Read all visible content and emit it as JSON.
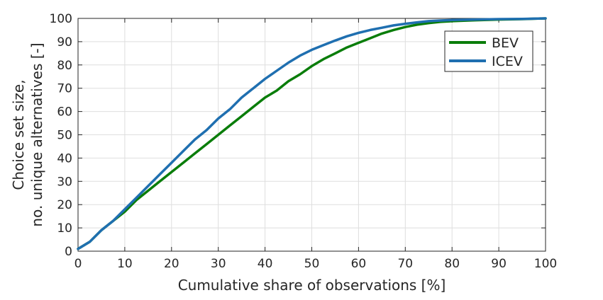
{
  "chart_data": {
    "type": "line",
    "title": "",
    "xlabel": "Cumulative share of observations [%]",
    "ylabel_lines": [
      "Choice set size,",
      "no. unique alternatives [-]"
    ],
    "xlim": [
      0,
      100
    ],
    "ylim": [
      0,
      100
    ],
    "xticks": [
      0,
      10,
      20,
      30,
      40,
      50,
      60,
      70,
      80,
      90,
      100
    ],
    "yticks": [
      0,
      10,
      20,
      30,
      40,
      50,
      60,
      70,
      80,
      90,
      100
    ],
    "grid": true,
    "legend_position": "top-right",
    "series": [
      {
        "name": "BEV",
        "color": "#0a7d0a",
        "points": [
          [
            0,
            1
          ],
          [
            2.5,
            4
          ],
          [
            5,
            9
          ],
          [
            7.5,
            13
          ],
          [
            10,
            17
          ],
          [
            12.5,
            22
          ],
          [
            15,
            26
          ],
          [
            17.5,
            30
          ],
          [
            20,
            34
          ],
          [
            22.5,
            38
          ],
          [
            25,
            42
          ],
          [
            27.5,
            46
          ],
          [
            30,
            50
          ],
          [
            32.5,
            54
          ],
          [
            35,
            58
          ],
          [
            37.5,
            62
          ],
          [
            40,
            66
          ],
          [
            42.5,
            69
          ],
          [
            45,
            73
          ],
          [
            47.5,
            76
          ],
          [
            50,
            79.5
          ],
          [
            52.5,
            82.5
          ],
          [
            55,
            85
          ],
          [
            57.5,
            87.5
          ],
          [
            60,
            89.5
          ],
          [
            62.5,
            91.5
          ],
          [
            65,
            93.5
          ],
          [
            67.5,
            95
          ],
          [
            70,
            96.3
          ],
          [
            72.5,
            97.3
          ],
          [
            75,
            98
          ],
          [
            77.5,
            98.5
          ],
          [
            80,
            98.8
          ],
          [
            85,
            99.2
          ],
          [
            90,
            99.5
          ],
          [
            95,
            99.7
          ],
          [
            100,
            100
          ]
        ]
      },
      {
        "name": "ICEV",
        "color": "#1f6fb0",
        "points": [
          [
            0,
            1
          ],
          [
            2.5,
            4
          ],
          [
            5,
            9
          ],
          [
            7.5,
            13
          ],
          [
            10,
            18
          ],
          [
            12.5,
            23
          ],
          [
            15,
            28
          ],
          [
            17.5,
            33
          ],
          [
            20,
            38
          ],
          [
            22.5,
            43
          ],
          [
            25,
            48
          ],
          [
            27.5,
            52
          ],
          [
            30,
            57
          ],
          [
            32.5,
            61
          ],
          [
            35,
            66
          ],
          [
            37.5,
            70
          ],
          [
            40,
            74
          ],
          [
            42.5,
            77.5
          ],
          [
            45,
            81
          ],
          [
            47.5,
            84
          ],
          [
            50,
            86.5
          ],
          [
            52.5,
            88.5
          ],
          [
            55,
            90.5
          ],
          [
            57.5,
            92.3
          ],
          [
            60,
            93.8
          ],
          [
            62.5,
            95
          ],
          [
            65,
            96
          ],
          [
            67.5,
            97
          ],
          [
            70,
            97.7
          ],
          [
            72.5,
            98.3
          ],
          [
            75,
            98.8
          ],
          [
            77.5,
            99.1
          ],
          [
            80,
            99.3
          ],
          [
            85,
            99.5
          ],
          [
            90,
            99.7
          ],
          [
            95,
            99.8
          ],
          [
            100,
            100
          ]
        ]
      }
    ]
  }
}
